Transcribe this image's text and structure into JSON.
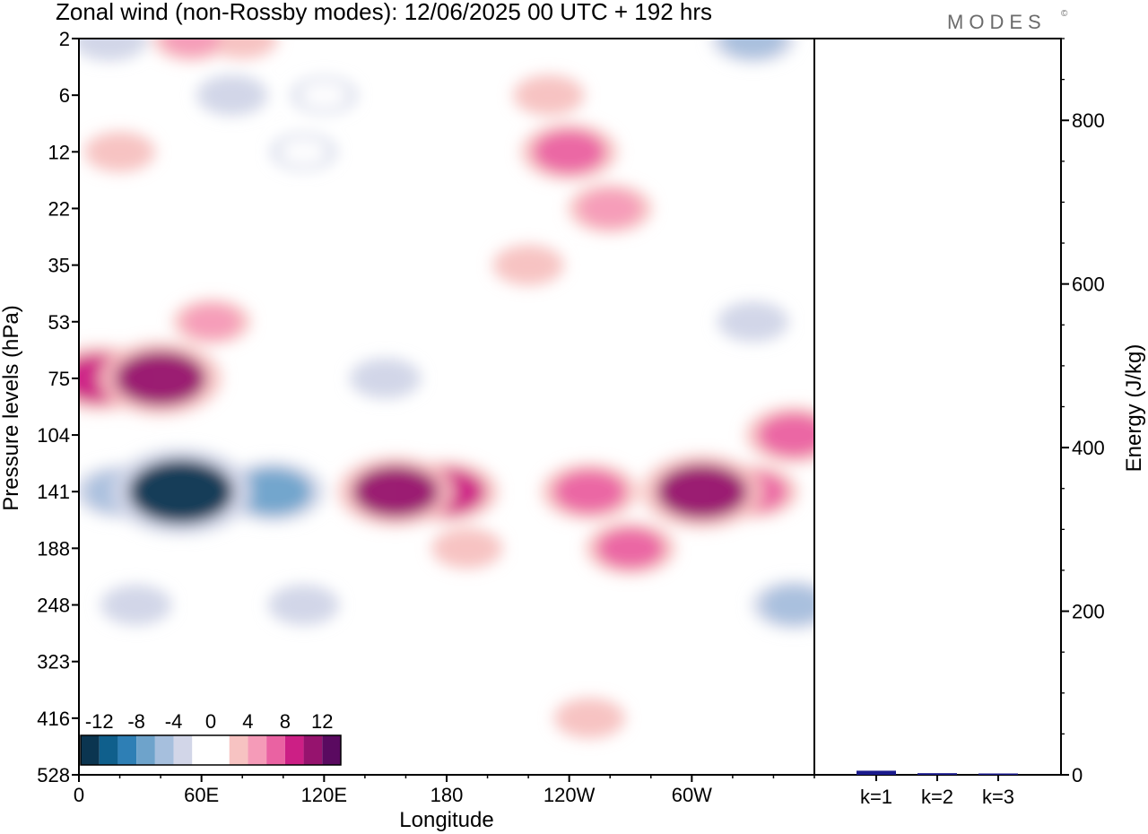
{
  "title": "Zonal wind (non-Rossby modes):  12/06/2025  00 UTC  + 192 hrs",
  "logo": "MODES",
  "logo_mark": "©",
  "colors": {
    "levels": [
      "#0b3550",
      "#0f5f8c",
      "#2e7fb5",
      "#6ea3cb",
      "#a6bfdd",
      "#d2d6e8",
      "#ffffff",
      "#ffffff",
      "#f7c3c2",
      "#f59bb8",
      "#ea62a2",
      "#cc1f85",
      "#96136e",
      "#5a0a60"
    ],
    "frame": "#000000",
    "bar": "#1a1a8c"
  },
  "chart_data": [
    {
      "type": "heatmap",
      "title": "Zonal wind (non-Rossby modes):  12/06/2025  00 UTC  + 192 hrs",
      "xlabel": "Longitude",
      "ylabel": "Pressure levels (hPa)",
      "x_ticks": [
        "0",
        "60E",
        "120E",
        "180",
        "120W",
        "60W"
      ],
      "x_tick_degrees": [
        0,
        60,
        120,
        180,
        240,
        300
      ],
      "xlim": [
        0,
        360
      ],
      "y_ticks": [
        "2",
        "6",
        "12",
        "22",
        "35",
        "53",
        "75",
        "104",
        "141",
        "188",
        "248",
        "323",
        "416",
        "528"
      ],
      "y_reversed": true,
      "colorbar": {
        "tick_labels": [
          "-12",
          "-8",
          "-4",
          "0",
          "4",
          "8",
          "12"
        ],
        "tick_values": [
          -12,
          -8,
          -4,
          0,
          4,
          8,
          12
        ],
        "bounds": [
          -14,
          14
        ],
        "step": 2
      },
      "features": [
        {
          "lon": 50,
          "level": "141",
          "value": -14
        },
        {
          "lon": 52,
          "level": "141",
          "value": -11
        },
        {
          "lon": 95,
          "level": "141",
          "value": -8
        },
        {
          "lon": 20,
          "level": "141",
          "value": -6
        },
        {
          "lon": 110,
          "level": "248",
          "value": -3
        },
        {
          "lon": 28,
          "level": "248",
          "value": -3
        },
        {
          "lon": 150,
          "level": "75",
          "value": -3
        },
        {
          "lon": 10,
          "level": "75",
          "value": 9
        },
        {
          "lon": 40,
          "level": "75",
          "value": 11
        },
        {
          "lon": 65,
          "level": "53",
          "value": 4
        },
        {
          "lon": 155,
          "level": "141",
          "value": 10
        },
        {
          "lon": 180,
          "level": "141",
          "value": 8
        },
        {
          "lon": 190,
          "level": "188",
          "value": 3
        },
        {
          "lon": 250,
          "level": "141",
          "value": 7
        },
        {
          "lon": 270,
          "level": "188",
          "value": 6
        },
        {
          "lon": 305,
          "level": "141",
          "value": 11
        },
        {
          "lon": 350,
          "level": "104",
          "value": 7
        },
        {
          "lon": 330,
          "level": "141",
          "value": 6
        },
        {
          "lon": 250,
          "level": "416",
          "value": 3
        },
        {
          "lon": 240,
          "level": "12",
          "value": 7
        },
        {
          "lon": 260,
          "level": "22",
          "value": 5
        },
        {
          "lon": 220,
          "level": "35",
          "value": 3
        },
        {
          "lon": 350,
          "level": "248",
          "value": -5
        },
        {
          "lon": 330,
          "level": "53",
          "value": -3
        },
        {
          "lon": 15,
          "level": "2",
          "value": -4
        },
        {
          "lon": 55,
          "level": "2",
          "value": 4
        },
        {
          "lon": 80,
          "level": "2",
          "value": 3
        },
        {
          "lon": 120,
          "level": "6",
          "value": -2
        },
        {
          "lon": 75,
          "level": "6",
          "value": -3
        },
        {
          "lon": 110,
          "level": "12",
          "value": -2
        },
        {
          "lon": 330,
          "level": "2",
          "value": -5
        },
        {
          "lon": 240,
          "level": "12",
          "value": -3
        },
        {
          "lon": 20,
          "level": "12",
          "value": 3
        },
        {
          "lon": 230,
          "level": "6",
          "value": 3
        }
      ]
    },
    {
      "type": "bar",
      "ylabel": "Energy (J/kg)",
      "categories": [
        "k=1",
        "k=2",
        "k=3"
      ],
      "values": [
        5,
        2,
        1
      ],
      "ylim": [
        0,
        900
      ],
      "y_ticks": [
        0,
        200,
        400,
        600,
        800
      ]
    }
  ]
}
